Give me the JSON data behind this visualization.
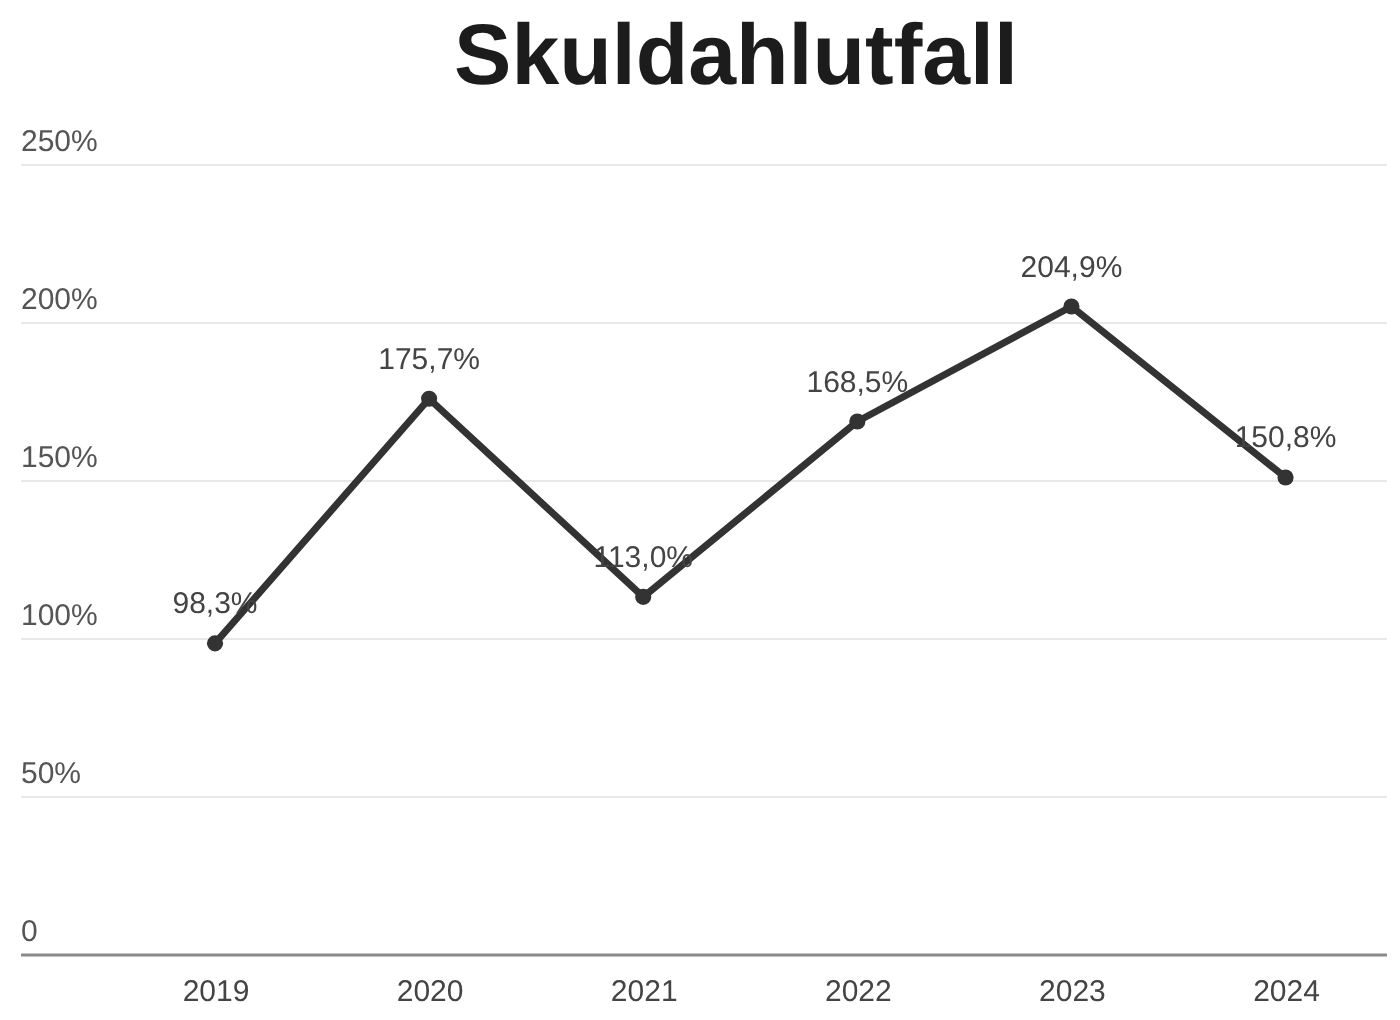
{
  "chart_data": {
    "type": "line",
    "title": "Skuldahlutfall",
    "categories": [
      "2019",
      "2020",
      "2021",
      "2022",
      "2023",
      "2024"
    ],
    "series": [
      {
        "color": "#333333",
        "values": [
          98.3,
          175.7,
          113.0,
          168.5,
          204.9,
          150.8
        ],
        "value_labels": [
          "98,3%",
          "175,7%",
          "113,0%",
          "168,5%",
          "204,9%",
          "150,8%"
        ]
      }
    ],
    "ylim": [
      0,
      250
    ],
    "yticks": [
      0,
      {
        "value": 50,
        "label": "50%"
      },
      {
        "value": 100,
        "label": "100%"
      },
      {
        "value": 150,
        "label": "150%"
      },
      {
        "value": 200,
        "label": "200%"
      },
      {
        "value": 250,
        "label": "250%"
      }
    ],
    "grid": "y",
    "marker": "circle",
    "line_style": "solid"
  }
}
